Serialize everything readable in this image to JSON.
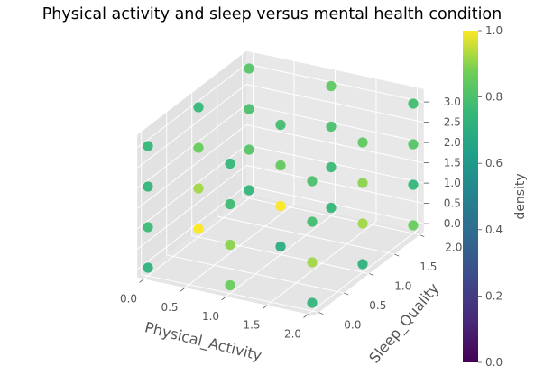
{
  "chart_data": {
    "type": "scatter",
    "subtype": "3d-scatter",
    "title": "Physical activity and sleep versus mental health condition",
    "xlabel": "Physical_Activity",
    "ylabel": "Sleep_Quality",
    "zlabel": "",
    "xlim": [
      0,
      2
    ],
    "ylim": [
      0,
      2
    ],
    "zlim": [
      0,
      3
    ],
    "x_ticks": [
      "0.0",
      "0.5",
      "1.0",
      "1.5",
      "2.0"
    ],
    "y_ticks": [
      "0.0",
      "0.5",
      "1.0",
      "1.5",
      "2.0"
    ],
    "z_ticks": [
      "0.0",
      "0.5",
      "1.0",
      "1.5",
      "2.0",
      "2.5",
      "3.0"
    ],
    "colorbar": {
      "label": "density",
      "colormap": "viridis",
      "range": [
        0,
        1
      ],
      "ticks": [
        "0.0",
        "0.2",
        "0.4",
        "0.6",
        "0.8",
        "1.0"
      ]
    },
    "points": [
      {
        "x": 0,
        "y": 0,
        "z": 0,
        "density": 0.72
      },
      {
        "x": 0,
        "y": 0,
        "z": 1,
        "density": 0.76
      },
      {
        "x": 0,
        "y": 0,
        "z": 2,
        "density": 0.74
      },
      {
        "x": 0,
        "y": 0,
        "z": 3,
        "density": 0.75
      },
      {
        "x": 1,
        "y": 0,
        "z": 0,
        "density": 0.86
      },
      {
        "x": 1,
        "y": 0,
        "z": 1,
        "density": 0.9
      },
      {
        "x": 1,
        "y": 0,
        "z": 2,
        "density": 0.77
      },
      {
        "x": 1,
        "y": 0,
        "z": 3,
        "density": 0.75
      },
      {
        "x": 2,
        "y": 0,
        "z": 0,
        "density": 0.74
      },
      {
        "x": 2,
        "y": 0,
        "z": 1,
        "density": 0.92
      },
      {
        "x": 2,
        "y": 0,
        "z": 2,
        "density": 0.78
      },
      {
        "x": 2,
        "y": 0,
        "z": 3,
        "density": 0.8
      },
      {
        "x": 0,
        "y": 1,
        "z": 0,
        "density": 1.0
      },
      {
        "x": 0,
        "y": 1,
        "z": 1,
        "density": 0.92
      },
      {
        "x": 0,
        "y": 1,
        "z": 2,
        "density": 0.86
      },
      {
        "x": 0,
        "y": 1,
        "z": 3,
        "density": 0.75
      },
      {
        "x": 1,
        "y": 1,
        "z": 0,
        "density": 0.7
      },
      {
        "x": 1,
        "y": 1,
        "z": 1,
        "density": 1.0
      },
      {
        "x": 1,
        "y": 1,
        "z": 2,
        "density": 0.85
      },
      {
        "x": 1,
        "y": 1,
        "z": 3,
        "density": 0.78
      },
      {
        "x": 2,
        "y": 1,
        "z": 0,
        "density": 0.72
      },
      {
        "x": 2,
        "y": 1,
        "z": 1,
        "density": 0.92
      },
      {
        "x": 2,
        "y": 1,
        "z": 2,
        "density": 0.9
      },
      {
        "x": 2,
        "y": 1,
        "z": 3,
        "density": 0.84
      },
      {
        "x": 0,
        "y": 2,
        "z": 0,
        "density": 0.74
      },
      {
        "x": 0,
        "y": 2,
        "z": 1,
        "density": 0.82
      },
      {
        "x": 0,
        "y": 2,
        "z": 2,
        "density": 0.8
      },
      {
        "x": 0,
        "y": 2,
        "z": 3,
        "density": 0.82
      },
      {
        "x": 1,
        "y": 2,
        "z": 0,
        "density": 0.75
      },
      {
        "x": 1,
        "y": 2,
        "z": 1,
        "density": 0.76
      },
      {
        "x": 1,
        "y": 2,
        "z": 2,
        "density": 0.8
      },
      {
        "x": 1,
        "y": 2,
        "z": 3,
        "density": 0.84
      },
      {
        "x": 2,
        "y": 2,
        "z": 0,
        "density": 0.86
      },
      {
        "x": 2,
        "y": 2,
        "z": 1,
        "density": 0.74
      },
      {
        "x": 2,
        "y": 2,
        "z": 2,
        "density": 0.82
      },
      {
        "x": 2,
        "y": 2,
        "z": 3,
        "density": 0.78
      }
    ]
  }
}
